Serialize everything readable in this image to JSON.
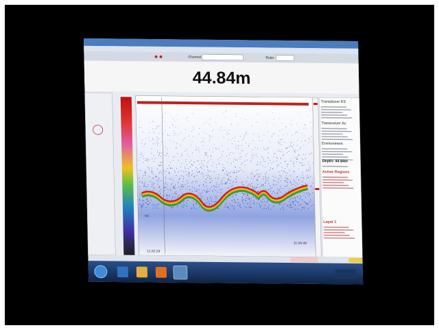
{
  "toolbar": {
    "channel_label": "Channel",
    "ruler_label": "Ruler"
  },
  "depth_display": "44.84m",
  "echogram": {
    "depth_label": "50",
    "start_time": "11:32:29",
    "end_time": "11:36:49"
  },
  "side_panel": {
    "headings": [
      "Transducer ES",
      "Transceiver Ac",
      "Environment",
      "Depth: 44.84m",
      "Active Regions",
      "Layer 1"
    ]
  }
}
